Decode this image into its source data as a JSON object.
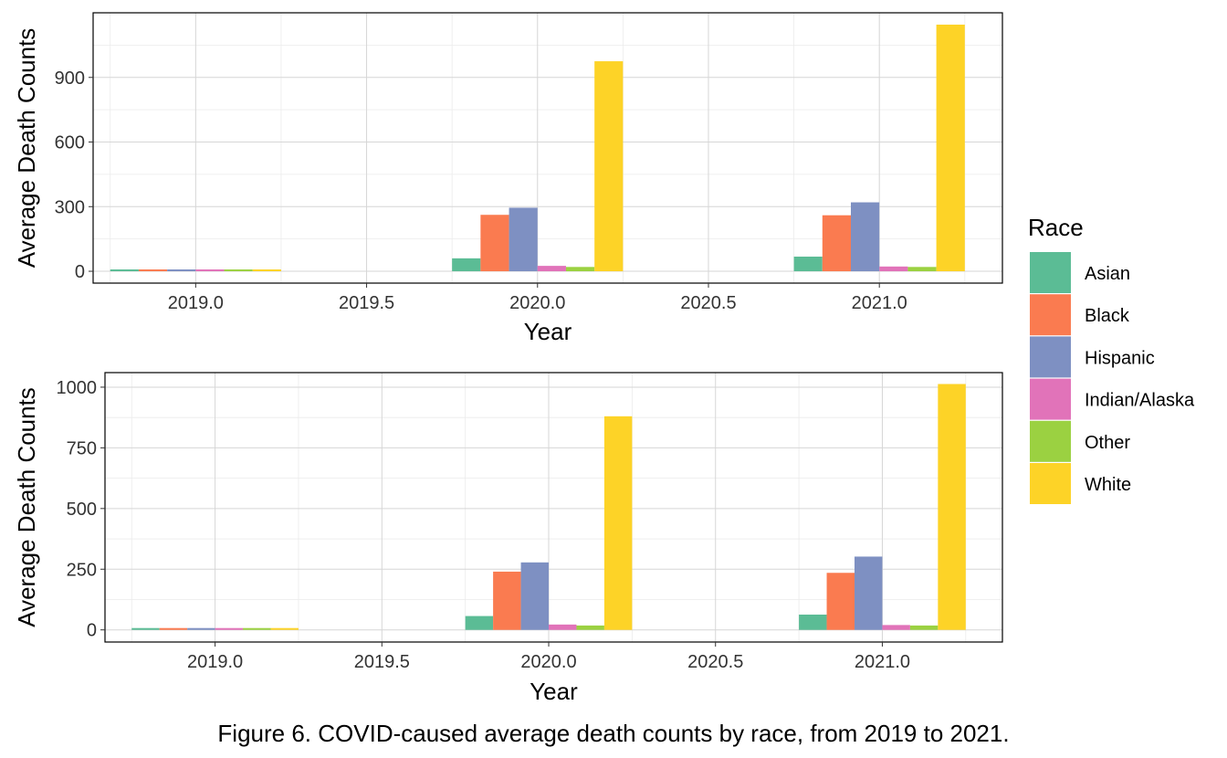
{
  "caption": "Figure 6. COVID-caused average death counts by race, from 2019 to 2021.",
  "legend": {
    "title": "Race",
    "entries": [
      {
        "name": "Asian",
        "color": "#5BBC95"
      },
      {
        "name": "Black",
        "color": "#FA7B50"
      },
      {
        "name": "Hispanic",
        "color": "#7E90C2"
      },
      {
        "name": "Indian/Alaska",
        "color": "#E173B9"
      },
      {
        "name": "Other",
        "color": "#9BD141"
      },
      {
        "name": "White",
        "color": "#FDD327"
      }
    ]
  },
  "chart_data": [
    {
      "type": "bar",
      "xlabel": "Year",
      "ylabel": "Average Death Counts",
      "xticks": [
        "2019.0",
        "2019.5",
        "2020.0",
        "2020.5",
        "2021.0"
      ],
      "xtick_values": [
        2019.0,
        2019.5,
        2020.0,
        2020.5,
        2021.0
      ],
      "yticks": [
        "0",
        "300",
        "600",
        "900"
      ],
      "ytick_values": [
        0,
        300,
        600,
        900
      ],
      "xlim": [
        2018.7,
        2021.36
      ],
      "ylim": [
        -55,
        1200
      ],
      "categories": [
        2019,
        2020,
        2021
      ],
      "series": [
        {
          "name": "Asian",
          "values": [
            3,
            60,
            68
          ]
        },
        {
          "name": "Black",
          "values": [
            3,
            262,
            260
          ]
        },
        {
          "name": "Hispanic",
          "values": [
            3,
            295,
            320
          ]
        },
        {
          "name": "Indian/Alaska",
          "values": [
            3,
            25,
            22
          ]
        },
        {
          "name": "Other",
          "values": [
            3,
            20,
            20
          ]
        },
        {
          "name": "White",
          "values": [
            3,
            975,
            1145
          ]
        }
      ],
      "grid": true,
      "legend": "right"
    },
    {
      "type": "bar",
      "xlabel": "Year",
      "ylabel": "Average Death Counts",
      "xticks": [
        "2019.0",
        "2019.5",
        "2020.0",
        "2020.5",
        "2021.0"
      ],
      "xtick_values": [
        2019.0,
        2019.5,
        2020.0,
        2020.5,
        2021.0
      ],
      "yticks": [
        "0",
        "250",
        "500",
        "750",
        "1000"
      ],
      "ytick_values": [
        0,
        250,
        500,
        750,
        1000
      ],
      "xlim": [
        2018.67,
        2021.36
      ],
      "ylim": [
        -50,
        1060
      ],
      "categories": [
        2019,
        2020,
        2021
      ],
      "series": [
        {
          "name": "Asian",
          "values": [
            3,
            57,
            63
          ]
        },
        {
          "name": "Black",
          "values": [
            3,
            240,
            235
          ]
        },
        {
          "name": "Hispanic",
          "values": [
            3,
            278,
            302
          ]
        },
        {
          "name": "Indian/Alaska",
          "values": [
            3,
            22,
            20
          ]
        },
        {
          "name": "Other",
          "values": [
            3,
            18,
            18
          ]
        },
        {
          "name": "White",
          "values": [
            3,
            880,
            1013
          ]
        }
      ],
      "grid": true,
      "legend": "right"
    }
  ]
}
